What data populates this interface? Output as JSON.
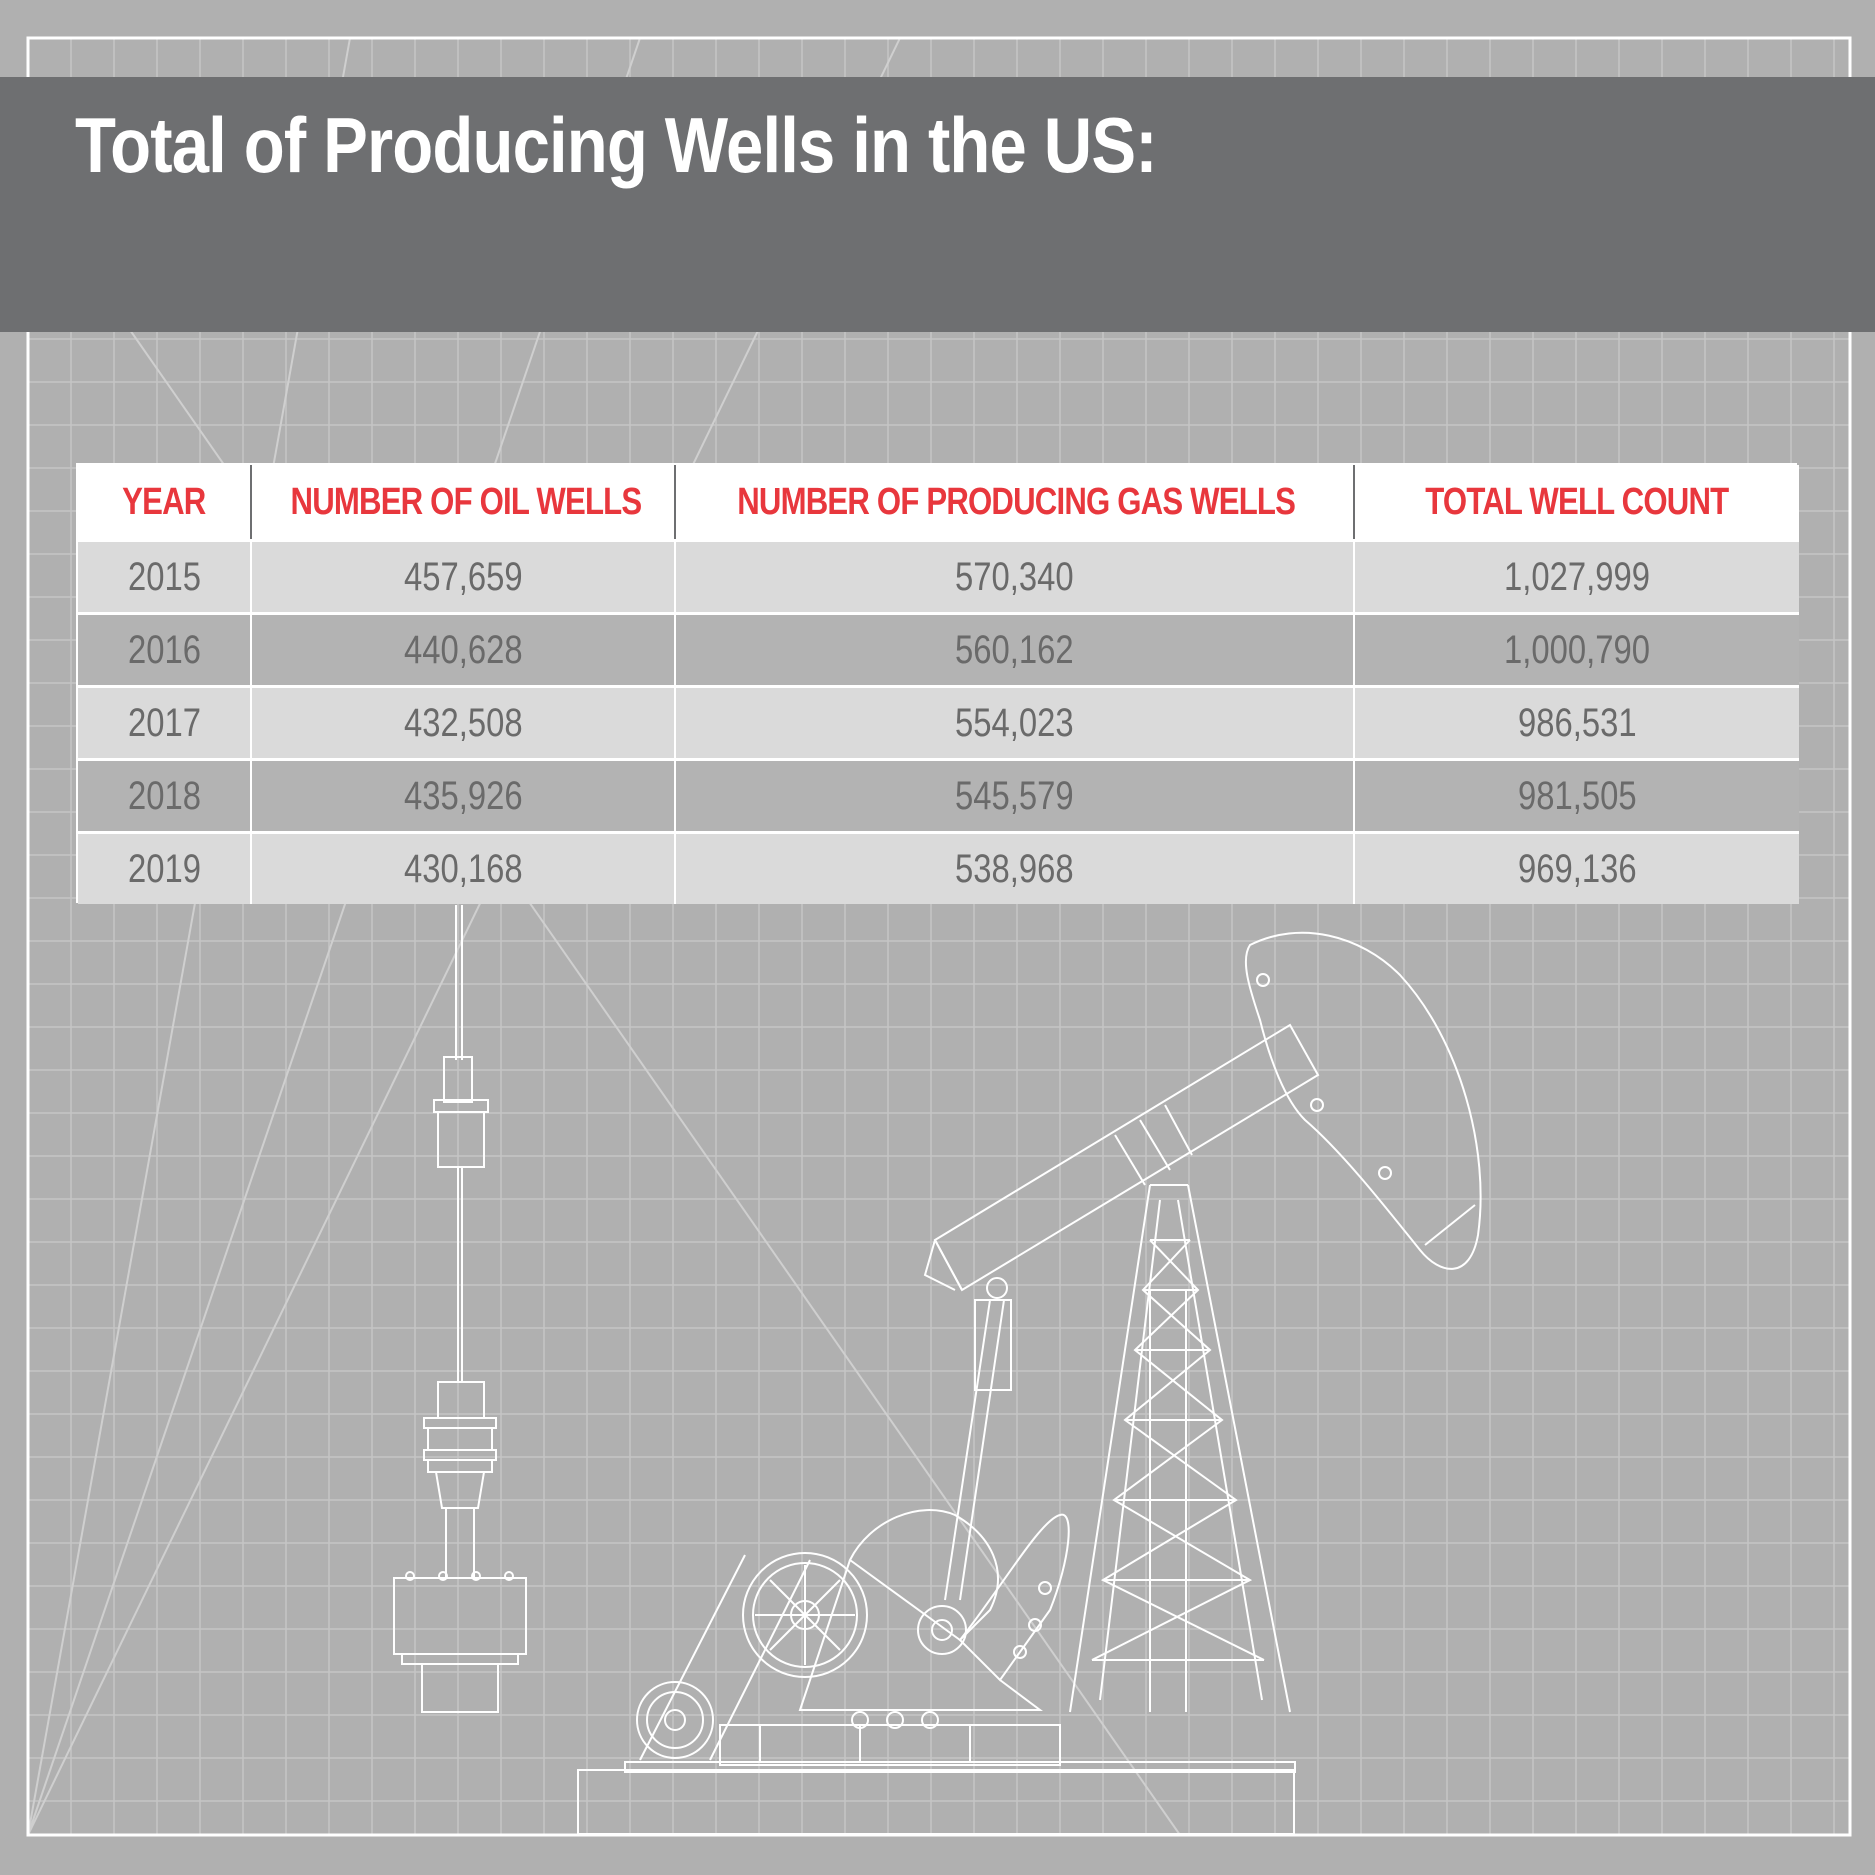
{
  "title": "Total of Producing Wells in the US:",
  "colors": {
    "background": "#b0b0b0",
    "title_band": "#6e6f71",
    "header_text": "#e8373d",
    "row_light": "#dadada",
    "row_dark": "#b3b3b3"
  },
  "chart_data": {
    "type": "table",
    "title": "Total of Producing Wells in the US:",
    "columns": [
      "YEAR",
      "NUMBER OF OIL WELLS",
      "NUMBER OF PRODUCING GAS WELLS",
      "TOTAL WELL COUNT"
    ],
    "rows": [
      [
        "2015",
        "457,659",
        "570,340",
        "1,027,999"
      ],
      [
        "2016",
        "440,628",
        "560,162",
        "1,000,790"
      ],
      [
        "2017",
        "432,508",
        "554,023",
        "986,531"
      ],
      [
        "2018",
        "435,926",
        "545,579",
        "981,505"
      ],
      [
        "2019",
        "430,168",
        "538,968",
        "969,136"
      ]
    ]
  }
}
